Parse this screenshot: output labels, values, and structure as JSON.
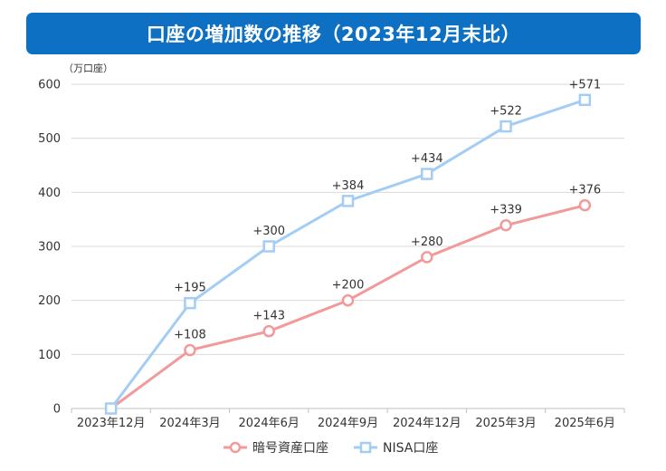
{
  "title": "口座の増加数の推移（2023年12月末比）",
  "chart_data": {
    "type": "line",
    "title": "口座の増加数の推移（2023年12月末比）",
    "unit_label": "（万口座）",
    "categories": [
      "2023年12月",
      "2024年3月",
      "2024年6月",
      "2024年9月",
      "2024年12月",
      "2025年3月",
      "2025年6月"
    ],
    "ylim": [
      0,
      600
    ],
    "yticks": [
      0,
      100,
      200,
      300,
      400,
      500,
      600
    ],
    "grid": true,
    "legend_position": "bottom",
    "series": [
      {
        "name": "暗号資産口座",
        "marker": "circle",
        "color": "#f29a9a",
        "values": [
          0,
          108,
          143,
          200,
          280,
          339,
          376
        ],
        "labels": [
          "",
          "+108",
          "+143",
          "+200",
          "+280",
          "+339",
          "+376"
        ]
      },
      {
        "name": "NISA口座",
        "marker": "square",
        "color": "#a3cdf5",
        "values": [
          0,
          195,
          300,
          384,
          434,
          522,
          571
        ],
        "labels": [
          "",
          "+195",
          "+300",
          "+384",
          "+434",
          "+522",
          "+571"
        ]
      }
    ]
  },
  "colors": {
    "banner": "#0d70c2",
    "grid": "#d9d9d9",
    "axis": "#bfbfbf"
  }
}
